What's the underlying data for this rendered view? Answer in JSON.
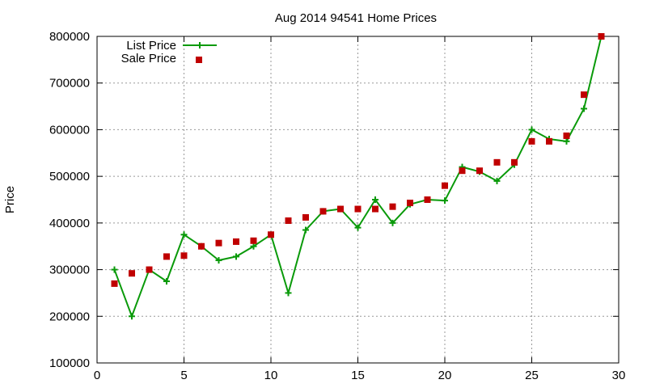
{
  "chart_data": {
    "type": "line",
    "title": "Aug 2014 94541 Home Prices",
    "xlabel": "",
    "ylabel": "Price",
    "xlim": [
      0,
      30
    ],
    "ylim": [
      100000,
      800000
    ],
    "x_ticks": [
      0,
      5,
      10,
      15,
      20,
      25,
      30
    ],
    "y_ticks": [
      100000,
      200000,
      300000,
      400000,
      500000,
      600000,
      700000,
      800000
    ],
    "grid": true,
    "legend_position": "top-left",
    "x": [
      1,
      2,
      3,
      4,
      5,
      6,
      7,
      8,
      9,
      10,
      11,
      12,
      13,
      14,
      15,
      16,
      17,
      18,
      19,
      20,
      21,
      22,
      23,
      24,
      25,
      26,
      27,
      28,
      29
    ],
    "series": [
      {
        "name": "List Price",
        "style": "line-with-plus-markers",
        "color": "#0a9a0a",
        "values": [
          300000,
          200000,
          300000,
          275000,
          375000,
          350000,
          320000,
          328000,
          350000,
          375000,
          250000,
          385000,
          425000,
          430000,
          390000,
          450000,
          400000,
          440000,
          450000,
          448000,
          520000,
          510000,
          490000,
          525000,
          600000,
          580000,
          575000,
          645000,
          800000
        ]
      },
      {
        "name": "Sale Price",
        "style": "square-markers",
        "color": "#c00000",
        "values": [
          270000,
          292000,
          300000,
          328000,
          330000,
          350000,
          357000,
          360000,
          362000,
          375000,
          405000,
          412000,
          425000,
          430000,
          430000,
          430000,
          435000,
          443000,
          450000,
          480000,
          512000,
          512000,
          530000,
          530000,
          575000,
          575000,
          587000,
          675000,
          800000
        ]
      }
    ]
  }
}
